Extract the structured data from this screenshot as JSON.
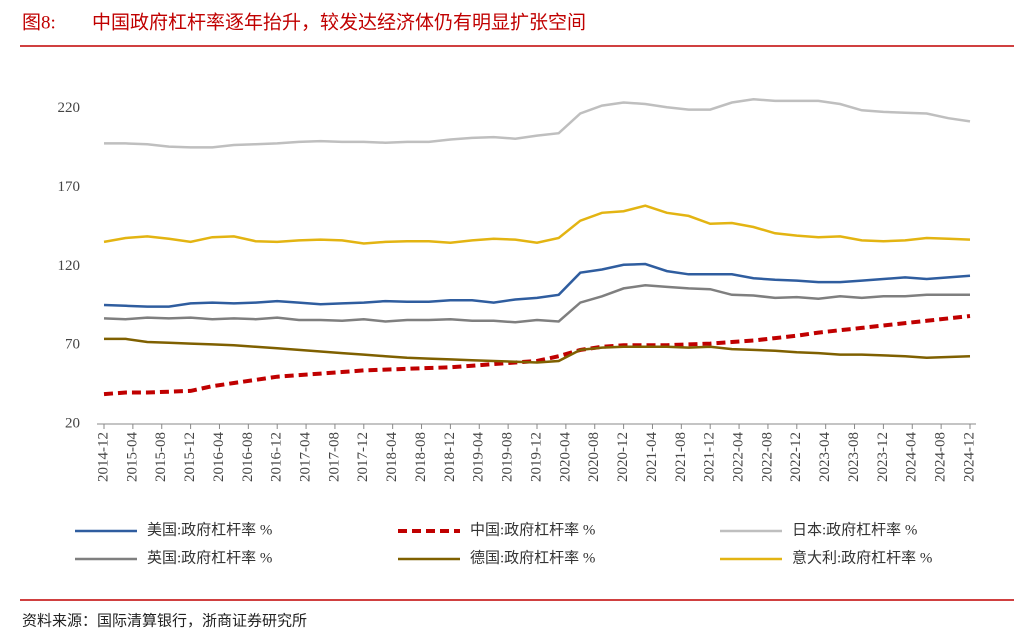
{
  "chart_data": {
    "type": "line",
    "figure_label": "图8:",
    "title": "中国政府杠杆率逐年抬升，较发达经济体仍有明显扩张空间",
    "source": "资料来源：国际清算银行，浙商证券研究所",
    "x": [
      "2014-12",
      "2015-03",
      "2015-06",
      "2015-09",
      "2015-12",
      "2016-03",
      "2016-06",
      "2016-09",
      "2016-12",
      "2017-03",
      "2017-06",
      "2017-09",
      "2017-12",
      "2018-03",
      "2018-06",
      "2018-09",
      "2018-12",
      "2019-03",
      "2019-06",
      "2019-09",
      "2019-12",
      "2020-03",
      "2020-06",
      "2020-09",
      "2020-12",
      "2021-03",
      "2021-06",
      "2021-09",
      "2021-12",
      "2022-03",
      "2022-06",
      "2022-09",
      "2022-12",
      "2023-03",
      "2023-06",
      "2023-09",
      "2023-12",
      "2024-03",
      "2024-06",
      "2024-09",
      "2024-12"
    ],
    "xticks": [
      "2014-12",
      "2015-04",
      "2015-08",
      "2015-12",
      "2016-04",
      "2016-08",
      "2016-12",
      "2017-04",
      "2017-08",
      "2017-12",
      "2018-04",
      "2018-08",
      "2018-12",
      "2019-04",
      "2019-08",
      "2019-12",
      "2020-04",
      "2020-08",
      "2020-12",
      "2021-04",
      "2021-08",
      "2021-12",
      "2022-04",
      "2022-08",
      "2022-12",
      "2023-04",
      "2023-08",
      "2023-12",
      "2024-04",
      "2024-08",
      "2024-12"
    ],
    "ylim": [
      20,
      230
    ],
    "yticks": [
      20,
      70,
      120,
      170,
      220
    ],
    "grid": false,
    "series": [
      {
        "name": "美国:政府杠杆率 %",
        "color": "#2f5d9f",
        "dashed": false,
        "values": [
          95.5,
          95,
          94.5,
          94.5,
          96.5,
          97,
          96.5,
          97,
          98,
          97,
          96,
          96.5,
          97,
          98,
          97.5,
          97.5,
          98.5,
          98.5,
          97,
          99,
          100,
          102,
          116,
          118,
          121,
          121.5,
          117,
          115,
          115,
          115,
          112.5,
          111.5,
          111,
          110,
          110,
          111,
          112,
          113,
          112,
          113,
          114
        ]
      },
      {
        "name": "中国:政府杠杆率 %",
        "color": "#c00000",
        "dashed": true,
        "values": [
          39,
          40,
          40,
          40.5,
          41,
          44,
          46,
          48,
          50,
          51,
          52,
          53,
          54,
          54.5,
          55,
          55.5,
          56,
          57,
          58,
          59,
          60,
          63,
          67,
          69,
          70,
          70,
          70,
          70.5,
          71,
          72,
          73,
          74.5,
          76,
          78,
          79.5,
          81,
          82.5,
          84,
          85.5,
          87,
          88.5
        ]
      },
      {
        "name": "日本:政府杠杆率 %",
        "color": "#bfbfbf",
        "dashed": false,
        "values": [
          198,
          198,
          197.5,
          196,
          195.5,
          195.5,
          197,
          197.5,
          198,
          199,
          199.5,
          199,
          199,
          198.5,
          199,
          199,
          200.5,
          201.5,
          202,
          201,
          203,
          204.5,
          217,
          222,
          224,
          223,
          221,
          219.5,
          219.5,
          224,
          226,
          225,
          225,
          225,
          223,
          219,
          218,
          217.5,
          217,
          214,
          212
        ]
      },
      {
        "name": "英国:政府杠杆率 %",
        "color": "#7f7f7f",
        "dashed": false,
        "values": [
          87,
          86.5,
          87.5,
          87,
          87.5,
          86.5,
          87,
          86.5,
          87.5,
          86,
          86,
          85.5,
          86.5,
          85,
          86,
          86,
          86.5,
          85.5,
          85.5,
          84.5,
          86,
          85,
          97,
          101,
          106,
          108,
          107,
          106,
          105.5,
          102,
          101.5,
          100,
          100.5,
          99.5,
          101,
          100,
          101,
          101,
          102,
          102,
          102
        ]
      },
      {
        "name": "德国:政府杠杆率 %",
        "color": "#7f6000",
        "dashed": false,
        "values": [
          74,
          74,
          72,
          71.5,
          71,
          70.5,
          70,
          69,
          68,
          67,
          66,
          65,
          64,
          63,
          62,
          61.5,
          61,
          60.5,
          60,
          59.5,
          59,
          60,
          67,
          68.5,
          69,
          69,
          69,
          68.5,
          69,
          67.5,
          67,
          66.5,
          65.5,
          65,
          64,
          64,
          63.5,
          63,
          62,
          62.5,
          63
        ]
      },
      {
        "name": "意大利:政府杠杆率 %",
        "color": "#e3b412",
        "dashed": false,
        "values": [
          135.5,
          138,
          139,
          137.5,
          135.5,
          138.5,
          139,
          136,
          135.5,
          136.5,
          137,
          136.5,
          134.5,
          135.5,
          136,
          136,
          135,
          136.5,
          137.5,
          137,
          135,
          138,
          149,
          154,
          155,
          158.5,
          154,
          152,
          147,
          147.5,
          145,
          141,
          139.5,
          138.5,
          139,
          136.5,
          136,
          136.5,
          138,
          137.5,
          137
        ]
      }
    ]
  }
}
